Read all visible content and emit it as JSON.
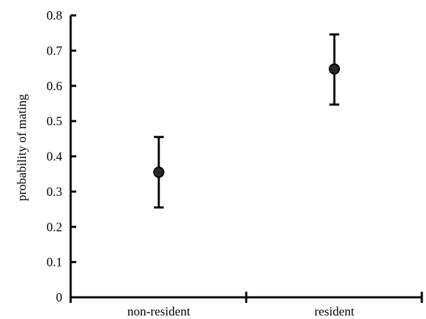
{
  "chart_data": {
    "type": "scatter",
    "subtype": "point-with-error-bars",
    "title": "",
    "xlabel": "",
    "ylabel": "probability of mating",
    "categories": [
      "non-resident",
      "resident"
    ],
    "values": [
      0.355,
      0.648
    ],
    "error_low": [
      0.255,
      0.547
    ],
    "error_high": [
      0.455,
      0.746
    ],
    "ylim": [
      0,
      0.8
    ],
    "yticks": [
      "0",
      "0.1",
      "0.2",
      "0.3",
      "0.4",
      "0.5",
      "0.6",
      "0.7",
      "0.8"
    ],
    "grid": false,
    "legend": "none",
    "colors": {
      "marker": "#000000",
      "axis": "#000000"
    }
  }
}
